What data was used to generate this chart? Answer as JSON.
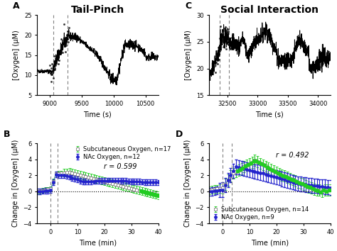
{
  "panel_A": {
    "title": "Tail-Pinch",
    "label": "A",
    "xlabel": "Time (s)",
    "ylabel": "[Oxygen] (μM)",
    "xlim": [
      8800,
      10700
    ],
    "ylim": [
      5,
      25
    ],
    "yticks": [
      5,
      10,
      15,
      20,
      25
    ],
    "xticks": [
      9000,
      9500,
      10000,
      10500
    ],
    "vlines": [
      9050,
      9280
    ]
  },
  "panel_C": {
    "title": "Social Interaction",
    "label": "C",
    "xlabel": "Time (s)",
    "ylabel": "[Oxygen] (μM)",
    "xlim": [
      32200,
      34200
    ],
    "ylim": [
      15,
      30
    ],
    "yticks": [
      15,
      20,
      25,
      30
    ],
    "xticks": [
      32500,
      33000,
      33500,
      34000
    ],
    "vlines": [
      32380,
      32530
    ]
  },
  "panel_B": {
    "label": "B",
    "xlabel": "Time (min)",
    "ylabel": "Change in [Oxygen] (μM)",
    "xlim": [
      -5,
      40
    ],
    "ylim": [
      -4,
      6
    ],
    "yticks": [
      -4,
      -2,
      0,
      2,
      4,
      6
    ],
    "xticks": [
      0,
      10,
      20,
      30,
      40
    ],
    "vlines": [
      0,
      2.5
    ],
    "r_value": "r = 0.599",
    "legend1": "Subcutaneous Oxygen, n=17",
    "legend2": "NAc Oxygen, n=12",
    "color_subq": "#22cc22",
    "color_nac": "#2222cc",
    "legend_loc": "upper left",
    "r_loc": [
      0.55,
      0.68
    ]
  },
  "panel_D": {
    "label": "D",
    "xlabel": "Time (min)",
    "ylabel": "Change in [Oxygen] (μM)",
    "xlim": [
      -5,
      40
    ],
    "ylim": [
      -4,
      6
    ],
    "yticks": [
      -4,
      -2,
      0,
      2,
      4,
      6
    ],
    "xticks": [
      0,
      10,
      20,
      30,
      40
    ],
    "vlines": [
      0,
      3.5
    ],
    "r_value": "r = 0.492",
    "legend1": "Subcutaneous Oxygen, n=14",
    "legend2": "NAc Oxygen, n=9",
    "color_subq": "#22cc22",
    "color_nac": "#2222cc",
    "legend_loc": "lower left",
    "r_loc": [
      0.55,
      0.82
    ]
  },
  "background_color": "#ffffff",
  "panel_label_fontsize": 9,
  "title_fontsize": 10,
  "axis_label_fontsize": 7,
  "tick_fontsize": 6,
  "legend_fontsize": 6
}
